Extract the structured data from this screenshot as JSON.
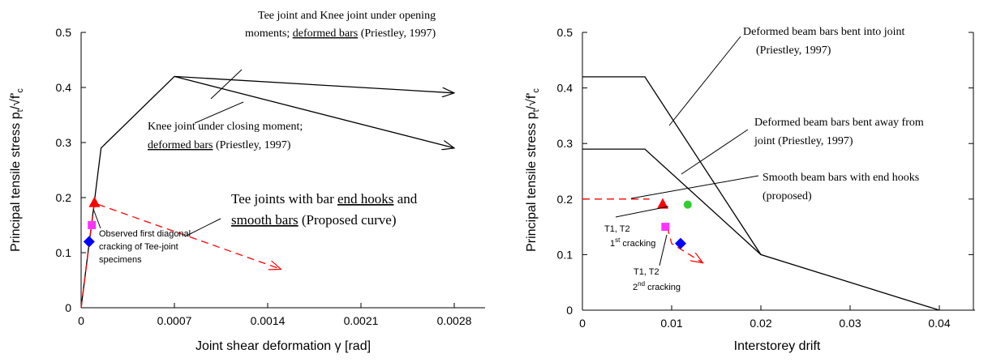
{
  "chart_data": [
    {
      "type": "line",
      "xlabel": "Joint shear deformation γ [rad]",
      "ylabel": "Principal tensile stress",
      "xlim": [
        0,
        0.0031
      ],
      "ylim": [
        0,
        0.5
      ],
      "xticks": [
        "0",
        "0.0007",
        "0.0014",
        "0.0021",
        "0.0028"
      ],
      "yticks": [
        "0",
        "0.1",
        "0.2",
        "0.3",
        "0.4",
        "0.5"
      ],
      "series": [
        {
          "points": [
            [
              0,
              0
            ],
            [
              0.00015,
              0.29
            ],
            [
              0.0007,
              0.42
            ],
            [
              0.0028,
              0.39
            ]
          ],
          "color": "#000000",
          "dashed": false,
          "arrow": true
        },
        {
          "points": [
            [
              0.0007,
              0.42
            ],
            [
              0.0028,
              0.29
            ]
          ],
          "color": "#000000",
          "dashed": false,
          "arrow": true
        },
        {
          "points": [
            [
              0,
              0
            ],
            [
              0.0001,
              0.19
            ],
            [
              0.0015,
              0.07
            ]
          ],
          "color": "#ff0000",
          "dashed": true,
          "arrow": true
        }
      ],
      "markers": [
        {
          "x": 0.0001,
          "y": 0.19,
          "shape": "triangle",
          "color": "#ff0000"
        },
        {
          "x": 8e-05,
          "y": 0.15,
          "shape": "square",
          "color": "#ff33ff"
        },
        {
          "x": 6e-05,
          "y": 0.12,
          "shape": "diamond",
          "color": "#0000ff"
        }
      ],
      "annotations": {
        "a1_l1": "Tee joint and Knee joint under opening",
        "a1_l2a": "moments;",
        "a1_l2b": "deformed bars",
        "a1_l2c": "(Priestley, 1997)",
        "a2_l1": "Knee joint under closing moment;",
        "a2_l2a": "deformed bars",
        "a2_l2b": "(Priestley, 1997)",
        "a3_l1a": "Tee joints with bar",
        "a3_l1b": "end hooks",
        "a3_l1c": "and",
        "a3_l2a": "smooth bars",
        "a3_l2b": "(Proposed curve)",
        "a4_l1": "Observed first diagonal",
        "a4_l2": "cracking of Tee-joint",
        "a4_l3": "specimens"
      }
    },
    {
      "type": "line",
      "xlabel": "Interstorey drift",
      "ylabel": "Principal tensile stress",
      "xlim": [
        0,
        0.045
      ],
      "ylim": [
        0,
        0.5
      ],
      "xticks": [
        "0",
        "0.01",
        "0.02",
        "0.03",
        "0.04"
      ],
      "yticks": [
        "0",
        "0.1",
        "0.2",
        "0.3",
        "0.4",
        "0.5"
      ],
      "series": [
        {
          "points": [
            [
              0,
              0.42
            ],
            [
              0.007,
              0.42
            ],
            [
              0.02,
              0.1
            ],
            [
              0.04,
              0
            ]
          ],
          "color": "#000000",
          "dashed": false,
          "arrow": false
        },
        {
          "points": [
            [
              0,
              0.29
            ],
            [
              0.007,
              0.29
            ],
            [
              0.02,
              0.1
            ]
          ],
          "color": "#000000",
          "dashed": false,
          "arrow": false
        },
        {
          "points": [
            [
              0,
              0.2
            ],
            [
              0.0075,
              0.2
            ]
          ],
          "color": "#ff0000",
          "dashed": true,
          "arrow": false
        },
        {
          "points": [
            [
              0.0095,
              0.15
            ],
            [
              0.01,
              0.12
            ],
            [
              0.0135,
              0.085
            ]
          ],
          "color": "#ff0000",
          "dashed": true,
          "arrow": true
        }
      ],
      "markers": [
        {
          "x": 0.009,
          "y": 0.19,
          "shape": "triangle",
          "color": "#ff0000"
        },
        {
          "x": 0.0118,
          "y": 0.19,
          "shape": "circle",
          "color": "#33cc33"
        },
        {
          "x": 0.0093,
          "y": 0.15,
          "shape": "square",
          "color": "#ff33ff"
        },
        {
          "x": 0.011,
          "y": 0.12,
          "shape": "diamond",
          "color": "#0000ff"
        }
      ],
      "annotations": {
        "b1_l1": "Deformed beam bars bent into joint",
        "b1_l2": "(Priestley, 1997)",
        "b2_l1": "Deformed beam bars bent away from",
        "b2_l2": "joint (Priestley, 1997)",
        "b3_l1": "Smooth beam  bars with end hooks",
        "b3_l2": "(proposed)",
        "c1_l1": "T1, T2",
        "c1_l2a": "1",
        "c1_l2b": "st",
        "c1_l2c": " cracking",
        "c2_l1": "T1, T2",
        "c2_l2a": "2",
        "c2_l2b": "nd",
        "c2_l2c": " cracking"
      }
    }
  ]
}
